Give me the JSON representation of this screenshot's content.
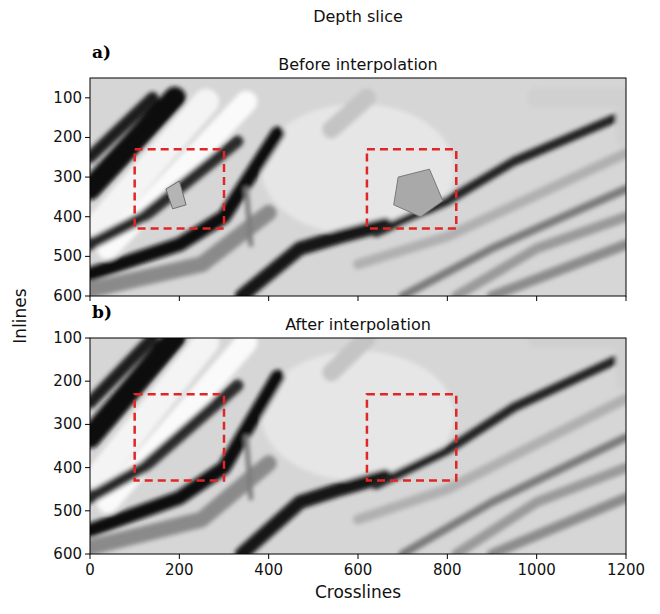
{
  "figure": {
    "title": "Depth slice",
    "ylabel": "Inlines"
  },
  "chart_data": [
    {
      "type": "image",
      "label": "a)",
      "title": "Before interpolation",
      "xlim": [
        0,
        1200
      ],
      "ylim": [
        600,
        50
      ],
      "xticks": [
        0,
        200,
        400,
        600,
        800,
        1000,
        1200
      ],
      "yticks": [
        100,
        200,
        300,
        400,
        500,
        600
      ],
      "tick_labels": "y",
      "boxes": [
        {
          "x": [
            100,
            300
          ],
          "y": [
            230,
            430
          ],
          "color": "#e02626"
        },
        {
          "x": [
            620,
            820
          ],
          "y": [
            230,
            430
          ],
          "color": "#e02626"
        }
      ]
    },
    {
      "type": "image",
      "label": "b)",
      "title": "After interpolation",
      "xlabel": "Crosslines",
      "xlim": [
        0,
        1200
      ],
      "ylim": [
        600,
        100
      ],
      "xticks": [
        0,
        200,
        400,
        600,
        800,
        1000,
        1200
      ],
      "yticks": [
        100,
        200,
        300,
        400,
        500,
        600
      ],
      "boxes": [
        {
          "x": [
            100,
            300
          ],
          "y": [
            230,
            430
          ],
          "color": "#e02626"
        },
        {
          "x": [
            620,
            820
          ],
          "y": [
            230,
            430
          ],
          "color": "#e02626"
        }
      ]
    }
  ]
}
